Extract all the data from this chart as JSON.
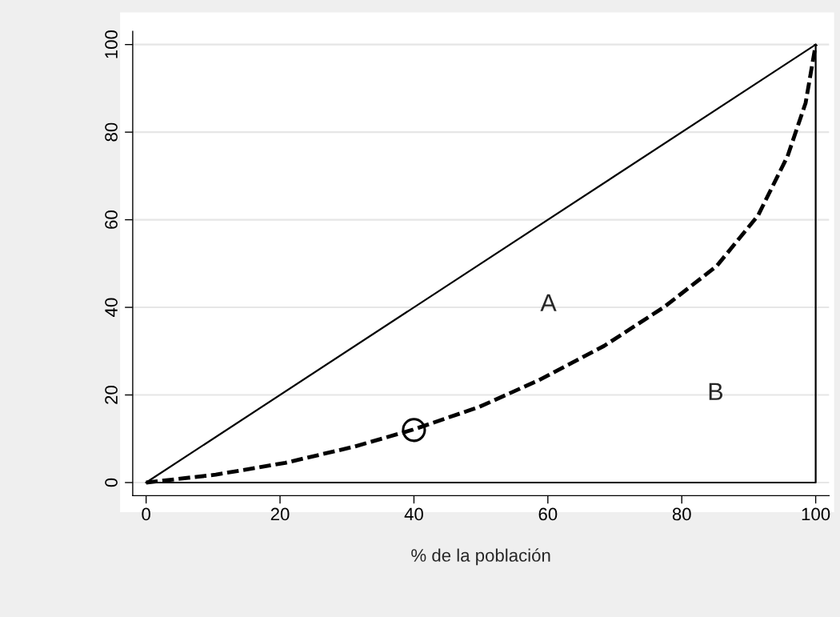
{
  "chart_data": {
    "type": "line",
    "xlabel": "% de la población",
    "xlim": [
      -2,
      102
    ],
    "ylim": [
      -3,
      103
    ],
    "xticks": [
      0,
      20,
      40,
      60,
      80,
      100
    ],
    "yticks": [
      0,
      20,
      40,
      60,
      80,
      100
    ],
    "grid": "y",
    "series": [
      {
        "type": "line",
        "x": [
          0,
          100
        ],
        "values": [
          0,
          100
        ],
        "color": "#000000",
        "line_style": "solid"
      },
      {
        "type": "line",
        "x": [
          0,
          100,
          100
        ],
        "values": [
          0,
          0,
          100
        ],
        "color": "#000000",
        "line_style": "solid"
      },
      {
        "type": "line",
        "x": [
          0,
          10.4,
          20.8,
          31.1,
          39.9,
          49.8,
          58.7,
          68.4,
          77.3,
          85.2,
          91.4,
          95.8,
          98.5,
          100
        ],
        "values": [
          0,
          1.8,
          4.5,
          8.2,
          12.1,
          17.3,
          23.4,
          31.2,
          40.0,
          49.4,
          61.0,
          74.5,
          86.7,
          100
        ],
        "color": "#000000",
        "line_style": "dashed"
      },
      {
        "type": "scatter",
        "x": [
          40
        ],
        "values": [
          12
        ],
        "color": "#000000",
        "marker": "circle"
      }
    ],
    "annotations": [
      "A",
      "B"
    ]
  }
}
